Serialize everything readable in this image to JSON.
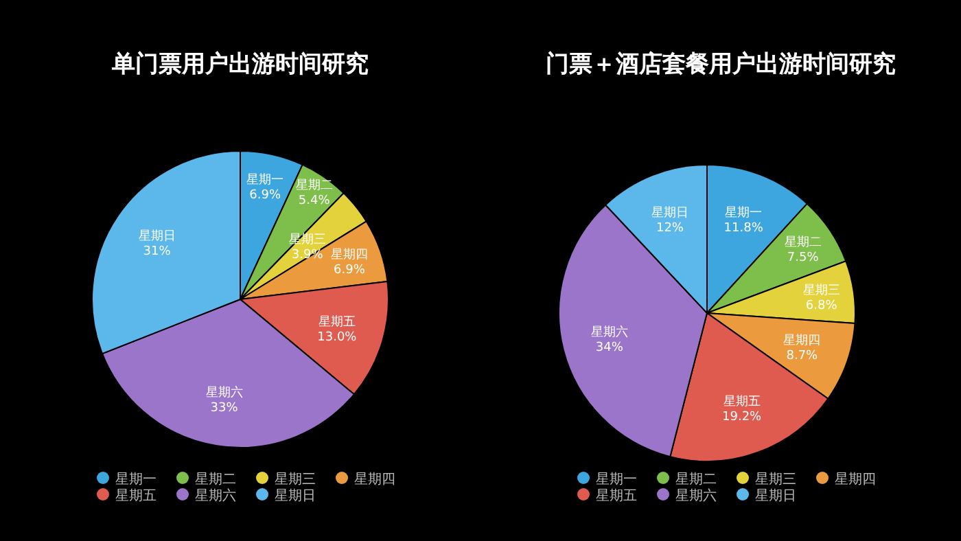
{
  "chart_data": [
    {
      "type": "pie",
      "title": "单门票用户出游时间研究",
      "categories": [
        "星期一",
        "星期二",
        "星期三",
        "星期四",
        "星期五",
        "星期六",
        "星期日"
      ],
      "values": [
        6.9,
        5.4,
        3.9,
        6.9,
        13.0,
        33,
        31
      ],
      "value_labels": [
        "6.9%",
        "5.4%",
        "3.9%",
        "6.9%",
        "13.0%",
        "33%",
        "31%"
      ],
      "colors": [
        "#3ea6df",
        "#7dbf4a",
        "#e4d23c",
        "#eb9b3e",
        "#e05b4f",
        "#9a75c9",
        "#5cb8ea"
      ],
      "legend": "bottom"
    },
    {
      "type": "pie",
      "title": "门票＋酒店套餐用户出游时间研究",
      "categories": [
        "星期一",
        "星期二",
        "星期三",
        "星期四",
        "星期五",
        "星期六",
        "星期日"
      ],
      "values": [
        11.8,
        7.5,
        6.8,
        8.7,
        19.2,
        34,
        12
      ],
      "value_labels": [
        "11.8%",
        "7.5%",
        "6.8%",
        "8.7%",
        "19.2%",
        "34%",
        "12%"
      ],
      "colors": [
        "#3ea6df",
        "#7dbf4a",
        "#e4d23c",
        "#eb9b3e",
        "#e05b4f",
        "#9a75c9",
        "#5cb8ea"
      ],
      "legend": "bottom"
    }
  ]
}
